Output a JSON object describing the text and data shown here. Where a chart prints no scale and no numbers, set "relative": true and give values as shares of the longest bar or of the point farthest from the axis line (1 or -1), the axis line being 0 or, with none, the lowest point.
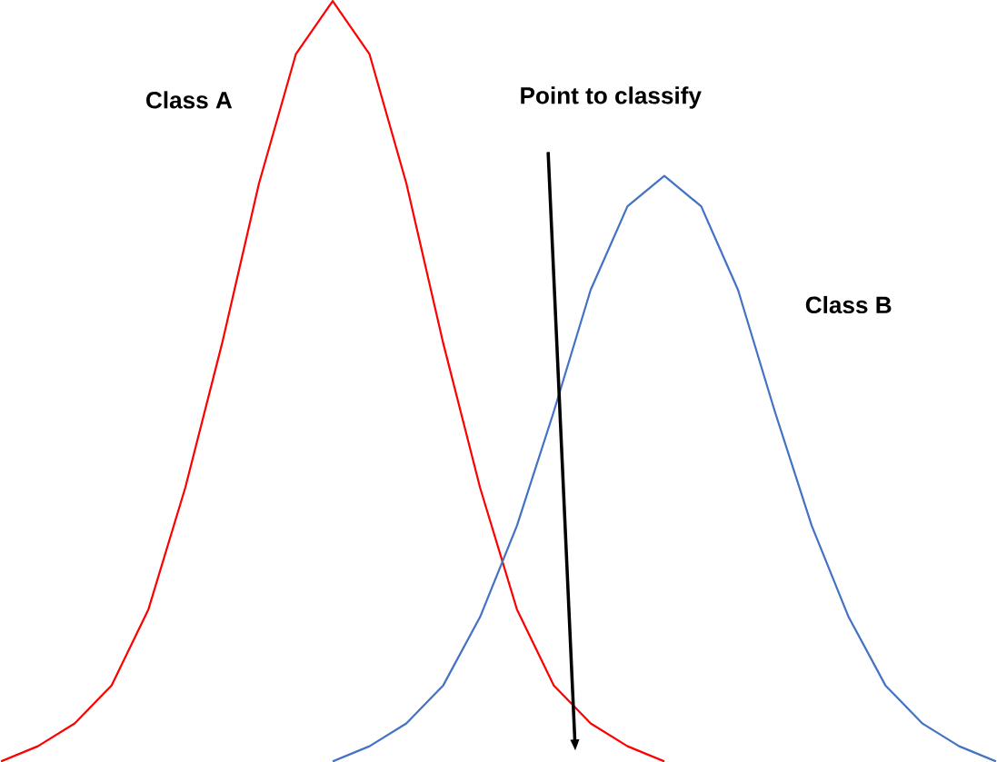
{
  "chart_data": {
    "type": "line",
    "relative": true,
    "line_style": "solid",
    "marker": "none",
    "categories": [
      null,
      null,
      null,
      null,
      null,
      null,
      null,
      null,
      null,
      null,
      null,
      null,
      null,
      null,
      null,
      null,
      null,
      null,
      null,
      null,
      null,
      null,
      null,
      null,
      null,
      null,
      null,
      null
    ],
    "series": [
      {
        "name": "Class A",
        "color": "#ff0000",
        "values": [
          0,
          0.02,
          0.05,
          0.1,
          0.2,
          0.36,
          0.55,
          0.76,
          0.93,
          1,
          0.93,
          0.76,
          0.55,
          0.36,
          0.2,
          0.1,
          0.05,
          0.02,
          0,
          null,
          null,
          null,
          null,
          null,
          null,
          null,
          null,
          null
        ]
      },
      {
        "name": "Class B",
        "color": "#4472c4",
        "values": [
          null,
          null,
          null,
          null,
          null,
          null,
          null,
          null,
          null,
          0,
          0.02,
          0.05,
          0.1,
          0.19,
          0.31,
          0.46,
          0.62,
          0.73,
          0.77,
          0.73,
          0.62,
          0.46,
          0.31,
          0.19,
          0.1,
          0.05,
          0.02,
          0
        ]
      }
    ],
    "annotations": [
      "Point to classify"
    ]
  }
}
